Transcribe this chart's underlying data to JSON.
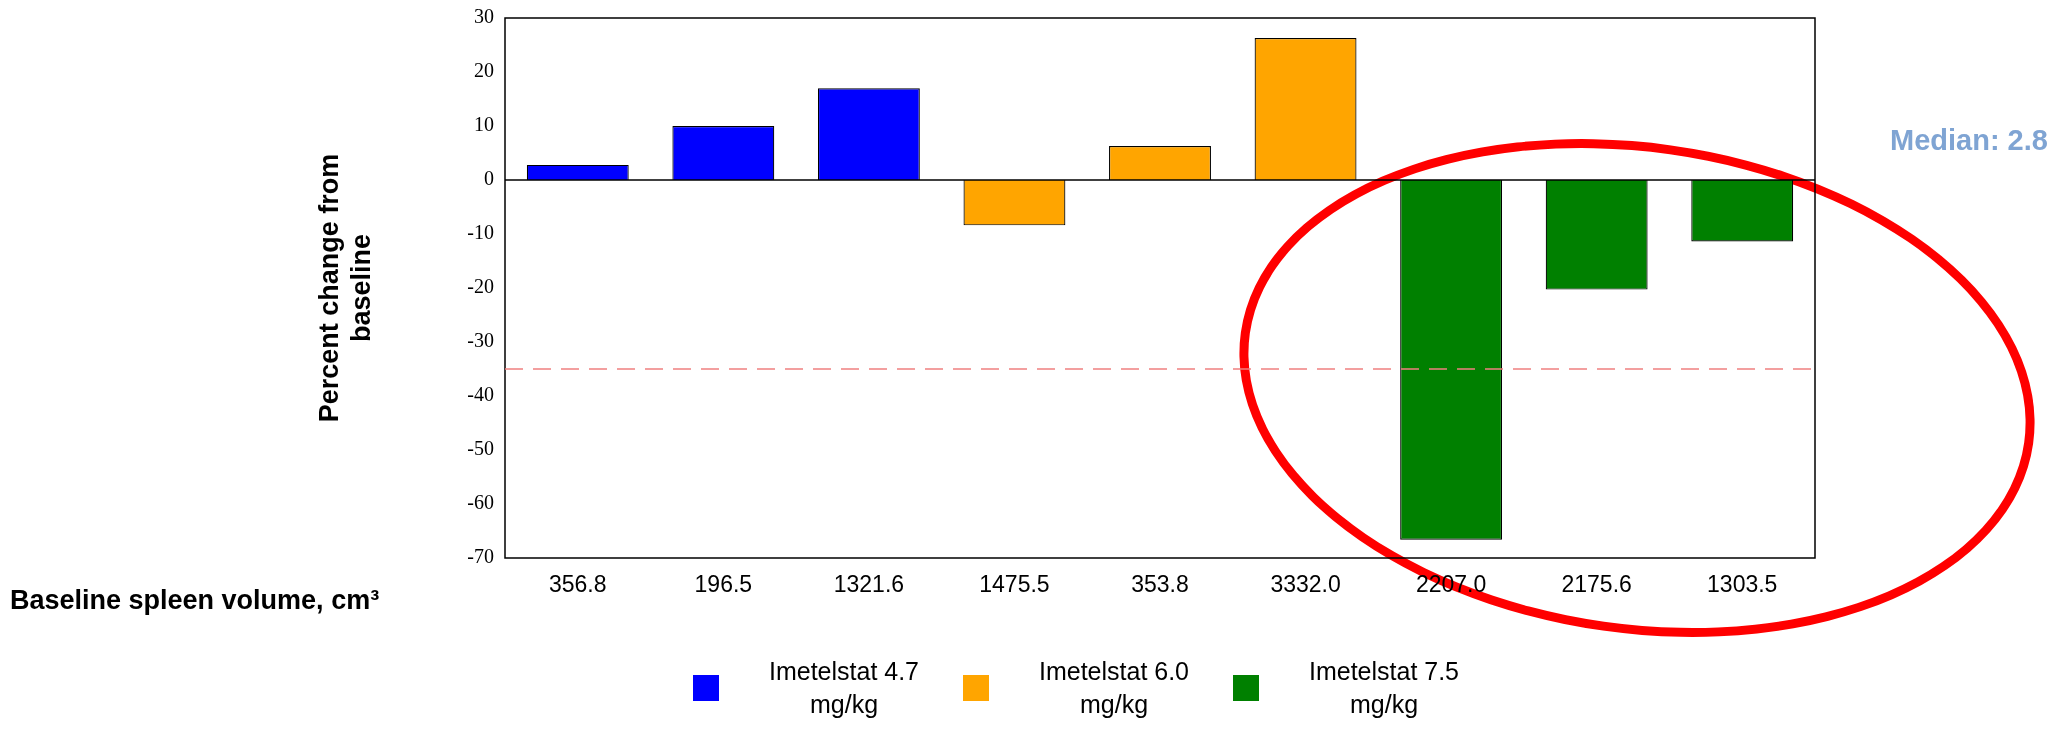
{
  "chart_data": {
    "type": "bar",
    "xlabel": "Baseline spleen volume, cm³",
    "ylabel": "Percent change from baseline",
    "categories": [
      "356.8",
      "196.5",
      "1321.6",
      "1475.5",
      "353.8",
      "3332.0",
      "2207.0",
      "2175.6",
      "1303.5"
    ],
    "series": [
      {
        "name": "Imetelstat 4.7 mg/kg",
        "color": "#0000ff",
        "values": [
          2.8,
          10,
          17,
          null,
          null,
          null,
          null,
          null,
          null
        ]
      },
      {
        "name": "Imetelstat 6.0 mg/kg",
        "color": "#ffa500",
        "values": [
          null,
          null,
          null,
          -8.4,
          6.3,
          26.3,
          null,
          null,
          null
        ]
      },
      {
        "name": "Imetelstat 7.5 mg/kg",
        "color": "#008000",
        "values": [
          null,
          null,
          null,
          null,
          null,
          null,
          -66.6,
          -20.3,
          -11.4
        ]
      }
    ],
    "ylim": [
      -70,
      30
    ],
    "yticks": [
      -70,
      -60,
      -50,
      -40,
      -30,
      -20,
      -10,
      0,
      10,
      20,
      30
    ],
    "grid": false,
    "legend": "bottom",
    "ref_lines": [
      {
        "axis": "y",
        "value": 0,
        "color": "#000000",
        "line_style": "solid"
      },
      {
        "axis": "y",
        "value": -35,
        "color": "#f08080",
        "line_style": "dashed"
      }
    ],
    "annotations": [
      "Median: 2.8"
    ]
  }
}
